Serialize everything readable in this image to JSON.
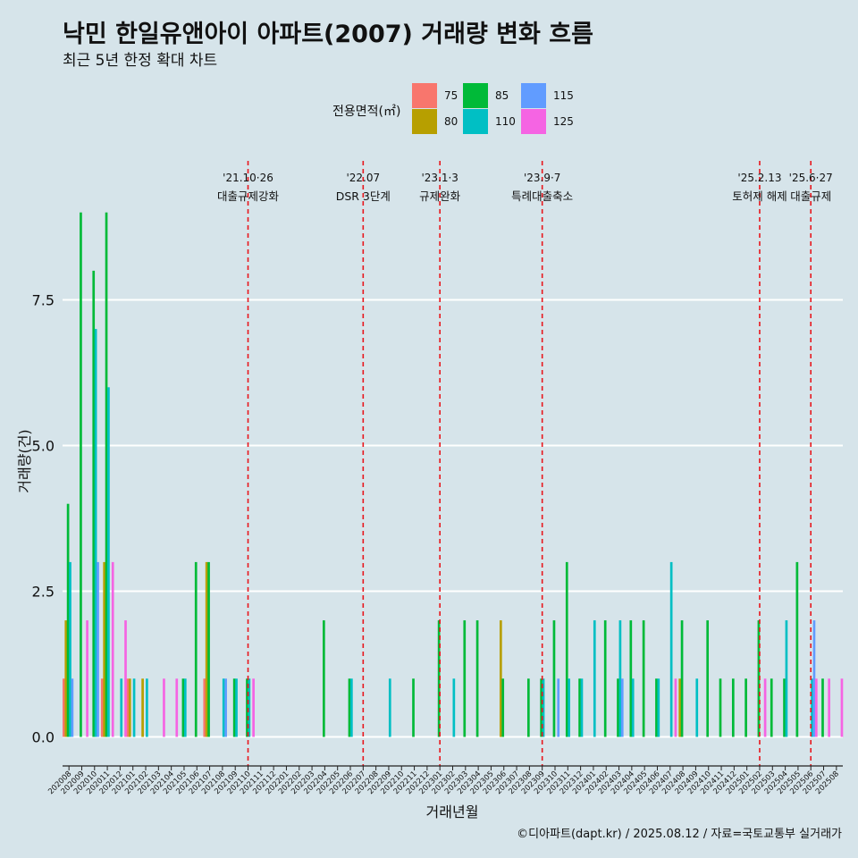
{
  "header": {
    "title": "낙민 한일유앤아이 아파트(2007) 거래량 변화 흐름",
    "subtitle": "최근 5년 한정 확대 차트"
  },
  "legend": {
    "title": "전용면적(㎡)",
    "items": [
      {
        "label": "75",
        "color": "#F8766D"
      },
      {
        "label": "80",
        "color": "#B79F00"
      },
      {
        "label": "85",
        "color": "#00BA38"
      },
      {
        "label": "110",
        "color": "#00BFC4"
      },
      {
        "label": "115",
        "color": "#619CFF"
      },
      {
        "label": "125",
        "color": "#F564E3"
      }
    ]
  },
  "footer": {
    "credit": "©디아파트(dapt.kr) / 2025.08.12 / 자료=국토교통부 실거래가"
  },
  "chart_data": {
    "type": "bar",
    "xlabel": "거래년월",
    "ylabel": "거래량(건)",
    "y_ticks": [
      0.0,
      2.5,
      5.0,
      7.5
    ],
    "y_tick_labels": [
      "0.0",
      "2.5",
      "5.0",
      "7.5"
    ],
    "ylim": [
      -0.5,
      9.0
    ],
    "grid": "horizontal",
    "legend_position": "top",
    "categories": [
      "202008",
      "202009",
      "202010",
      "202011",
      "202012",
      "202101",
      "202102",
      "202103",
      "202104",
      "202105",
      "202106",
      "202107",
      "202108",
      "202109",
      "202110",
      "202111",
      "202112",
      "202201",
      "202202",
      "202203",
      "202204",
      "202205",
      "202206",
      "202207",
      "202208",
      "202209",
      "202210",
      "202211",
      "202212",
      "202301",
      "202302",
      "202303",
      "202304",
      "202305",
      "202306",
      "202307",
      "202308",
      "202309",
      "202310",
      "202311",
      "202312",
      "202401",
      "202402",
      "202403",
      "202404",
      "202405",
      "202406",
      "202407",
      "202408",
      "202409",
      "202410",
      "202411",
      "202412",
      "202501",
      "202502",
      "202503",
      "202504",
      "202505",
      "202506",
      "202507",
      "202508"
    ],
    "series": [
      {
        "name": "75",
        "color": "#F8766D",
        "values": [
          1,
          0,
          0,
          1,
          0,
          1,
          0,
          0,
          0,
          0,
          0,
          1,
          0,
          0,
          0,
          0,
          0,
          0,
          0,
          0,
          0,
          0,
          0,
          0,
          0,
          0,
          0,
          0,
          0,
          0,
          0,
          0,
          0,
          0,
          0,
          0,
          0,
          0,
          0,
          0,
          0,
          0,
          0,
          0,
          0,
          0,
          0,
          0,
          0,
          0,
          0,
          0,
          0,
          0,
          0,
          0,
          0,
          0,
          0,
          0,
          0
        ]
      },
      {
        "name": "80",
        "color": "#B79F00",
        "values": [
          2,
          0,
          0,
          3,
          0,
          1,
          1,
          0,
          0,
          0,
          0,
          3,
          0,
          0,
          0,
          0,
          0,
          0,
          0,
          0,
          0,
          0,
          0,
          0,
          0,
          0,
          0,
          0,
          0,
          0,
          0,
          0,
          0,
          0,
          2,
          0,
          0,
          0,
          0,
          0,
          0,
          0,
          0,
          0,
          0,
          0,
          0,
          0,
          1,
          0,
          0,
          0,
          0,
          0,
          0,
          0,
          0,
          0,
          0,
          0,
          0
        ]
      },
      {
        "name": "85",
        "color": "#00BA38",
        "values": [
          4,
          9,
          8,
          9,
          0,
          0,
          0,
          0,
          0,
          1,
          3,
          3,
          0,
          1,
          1,
          0,
          0,
          0,
          0,
          0,
          2,
          0,
          1,
          0,
          0,
          0,
          0,
          1,
          0,
          2,
          0,
          2,
          2,
          0,
          1,
          0,
          1,
          1,
          2,
          3,
          1,
          0,
          2,
          1,
          2,
          2,
          1,
          0,
          2,
          0,
          2,
          1,
          1,
          1,
          2,
          1,
          1,
          3,
          0,
          1,
          0
        ]
      },
      {
        "name": "110",
        "color": "#00BFC4",
        "values": [
          3,
          0,
          7,
          6,
          1,
          1,
          1,
          0,
          0,
          1,
          0,
          0,
          1,
          1,
          1,
          0,
          0,
          0,
          0,
          0,
          0,
          0,
          1,
          0,
          0,
          1,
          0,
          0,
          0,
          0,
          1,
          0,
          0,
          0,
          0,
          0,
          0,
          1,
          0,
          1,
          1,
          2,
          0,
          2,
          1,
          0,
          1,
          3,
          0,
          1,
          0,
          0,
          0,
          0,
          0,
          0,
          2,
          0,
          1,
          0,
          0
        ]
      },
      {
        "name": "115",
        "color": "#619CFF",
        "values": [
          1,
          0,
          3,
          0,
          0,
          0,
          0,
          0,
          0,
          0,
          0,
          0,
          1,
          0,
          0,
          0,
          0,
          0,
          0,
          0,
          0,
          0,
          0,
          0,
          0,
          0,
          0,
          0,
          0,
          0,
          0,
          0,
          0,
          0,
          0,
          0,
          0,
          0,
          1,
          0,
          0,
          0,
          0,
          1,
          0,
          0,
          0,
          0,
          0,
          0,
          0,
          0,
          0,
          0,
          0,
          0,
          0,
          0,
          2,
          0,
          0
        ]
      },
      {
        "name": "125",
        "color": "#F564E3",
        "values": [
          0,
          2,
          0,
          3,
          2,
          0,
          0,
          1,
          1,
          0,
          0,
          0,
          0,
          0,
          1,
          0,
          0,
          0,
          0,
          0,
          0,
          0,
          0,
          0,
          0,
          0,
          0,
          0,
          0,
          0,
          0,
          0,
          0,
          0,
          0,
          0,
          0,
          0,
          0,
          0,
          0,
          0,
          0,
          0,
          0,
          0,
          0,
          1,
          0,
          0,
          0,
          0,
          0,
          0,
          1,
          0,
          0,
          0,
          1,
          1,
          1
        ]
      }
    ],
    "annotations": [
      {
        "x": "202110",
        "date": "'21.10·26",
        "label": "대출규제강화"
      },
      {
        "x": "202207",
        "date": "'22.07",
        "label": "DSR 3단계"
      },
      {
        "x": "202301",
        "date": "'23.1·3",
        "label": "규제완화"
      },
      {
        "x": "202309",
        "date": "'23.9·7",
        "label": "특례대출축소"
      },
      {
        "x": "202502",
        "date": "'25.2.13",
        "label": "토허제 해제"
      },
      {
        "x": "202506",
        "date": "'25.6·27",
        "label": "대출규제"
      }
    ]
  }
}
